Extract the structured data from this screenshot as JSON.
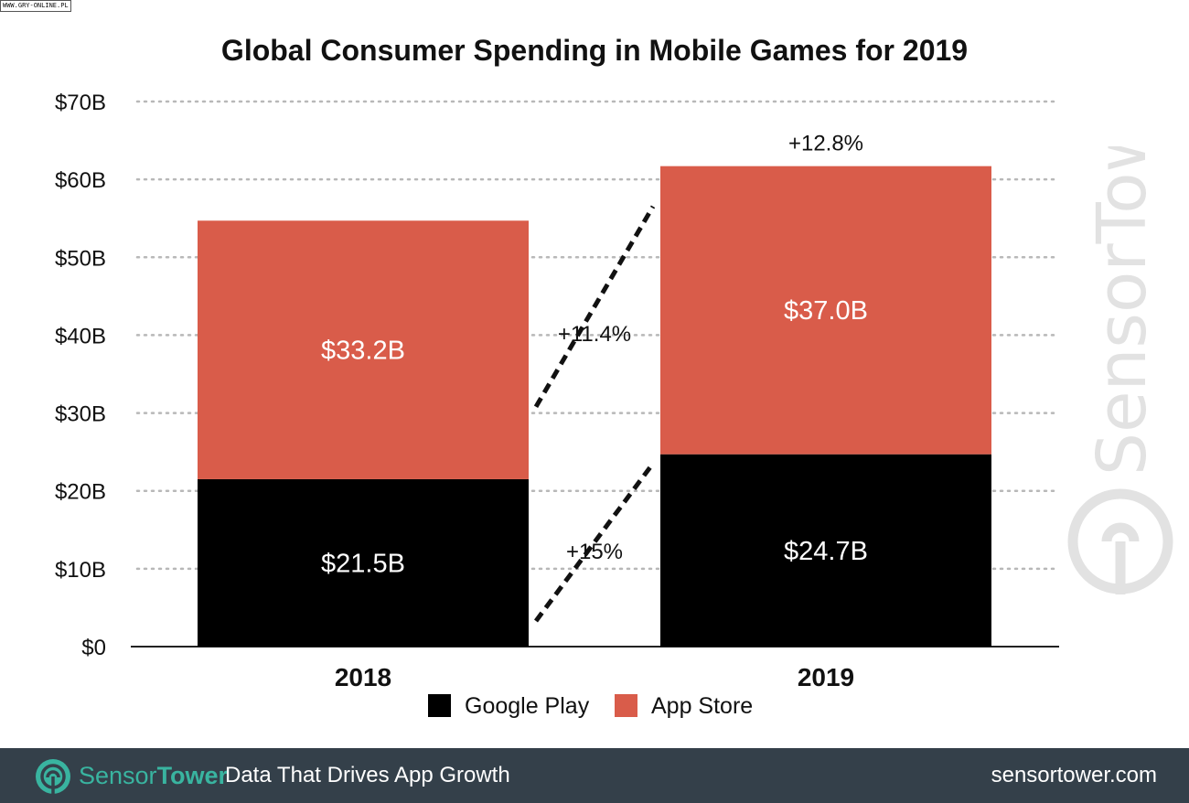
{
  "source_tag": "WWW.GRY-ONLINE.PL",
  "chart_data": {
    "type": "bar",
    "stacked": true,
    "title": "Global Consumer Spending in Mobile Games for 2019",
    "categories": [
      "2018",
      "2019"
    ],
    "series": [
      {
        "name": "Google Play",
        "values": [
          21.5,
          24.7
        ],
        "labels": [
          "$21.5B",
          "$24.7B"
        ],
        "color": "#000000"
      },
      {
        "name": "App Store",
        "values": [
          33.2,
          37.0
        ],
        "labels": [
          "$33.2B",
          "$37.0B"
        ],
        "color": "#d95c4a"
      }
    ],
    "ylim": [
      0,
      70
    ],
    "yticks": [
      0,
      10,
      20,
      30,
      40,
      50,
      60,
      70
    ],
    "ytick_labels": [
      "$0",
      "$10B",
      "$20B",
      "$30B",
      "$40B",
      "$50B",
      "$60B",
      "$70B"
    ],
    "grid": true,
    "legend_position": "bottom",
    "annotations": {
      "total_growth": "+12.8%",
      "app_store_growth": "+11.4%",
      "google_play_growth": "+15%"
    }
  },
  "watermark": {
    "brand": "SensorTower",
    "icon": "sensor-tower-logo-icon"
  },
  "footer": {
    "brand_part1": "Sensor",
    "brand_part2": "Tower",
    "tagline": "Data That Drives App Growth",
    "url": "sensortower.com",
    "icon": "sensor-tower-logo-icon",
    "background": "#34404a",
    "brand_color": "#39b4a0"
  }
}
